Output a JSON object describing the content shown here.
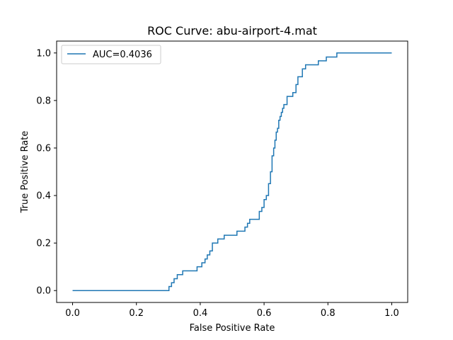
{
  "chart_data": {
    "type": "line",
    "title": "ROC Curve: abu-airport-4.mat",
    "xlabel": "False Positive Rate",
    "ylabel": "True Positive Rate",
    "xlim": [
      -0.05,
      1.05
    ],
    "ylim": [
      -0.05,
      1.05
    ],
    "xticks": [
      0.0,
      0.2,
      0.4,
      0.6,
      0.8,
      1.0
    ],
    "xtick_labels": [
      "0.0",
      "0.2",
      "0.4",
      "0.6",
      "0.8",
      "1.0"
    ],
    "yticks": [
      0.0,
      0.2,
      0.4,
      0.6,
      0.8,
      1.0
    ],
    "ytick_labels": [
      "0.0",
      "0.2",
      "0.4",
      "0.6",
      "0.8",
      "1.0"
    ],
    "grid": false,
    "legend_position": "top-left",
    "series": [
      {
        "name": "AUC=0.4036",
        "color": "#1f77b4",
        "x": [
          0.0,
          0.302,
          0.302,
          0.31,
          0.31,
          0.318,
          0.318,
          0.328,
          0.328,
          0.345,
          0.345,
          0.39,
          0.39,
          0.405,
          0.405,
          0.415,
          0.415,
          0.422,
          0.422,
          0.43,
          0.43,
          0.438,
          0.438,
          0.455,
          0.455,
          0.475,
          0.475,
          0.515,
          0.515,
          0.54,
          0.54,
          0.548,
          0.548,
          0.555,
          0.555,
          0.585,
          0.585,
          0.593,
          0.593,
          0.6,
          0.6,
          0.607,
          0.607,
          0.614,
          0.614,
          0.62,
          0.62,
          0.625,
          0.625,
          0.63,
          0.63,
          0.634,
          0.634,
          0.638,
          0.638,
          0.642,
          0.642,
          0.646,
          0.646,
          0.65,
          0.65,
          0.654,
          0.654,
          0.658,
          0.658,
          0.662,
          0.662,
          0.666,
          0.666,
          0.672,
          0.672,
          0.69,
          0.69,
          0.7,
          0.7,
          0.706,
          0.706,
          0.72,
          0.72,
          0.73,
          0.73,
          0.77,
          0.77,
          0.795,
          0.795,
          0.828,
          0.828,
          1.0
        ],
        "y": [
          0.0,
          0.0,
          0.017,
          0.017,
          0.033,
          0.033,
          0.05,
          0.05,
          0.067,
          0.067,
          0.083,
          0.083,
          0.1,
          0.1,
          0.117,
          0.117,
          0.133,
          0.133,
          0.15,
          0.15,
          0.167,
          0.167,
          0.2,
          0.2,
          0.217,
          0.217,
          0.233,
          0.233,
          0.25,
          0.25,
          0.267,
          0.267,
          0.283,
          0.283,
          0.3,
          0.3,
          0.333,
          0.333,
          0.35,
          0.35,
          0.383,
          0.383,
          0.4,
          0.4,
          0.45,
          0.45,
          0.5,
          0.5,
          0.567,
          0.567,
          0.6,
          0.6,
          0.633,
          0.633,
          0.667,
          0.667,
          0.683,
          0.683,
          0.717,
          0.717,
          0.733,
          0.733,
          0.75,
          0.75,
          0.767,
          0.767,
          0.783,
          0.783,
          0.783,
          0.783,
          0.817,
          0.817,
          0.833,
          0.833,
          0.867,
          0.867,
          0.9,
          0.9,
          0.933,
          0.933,
          0.95,
          0.95,
          0.967,
          0.967,
          0.983,
          0.983,
          1.0,
          1.0
        ]
      }
    ]
  }
}
